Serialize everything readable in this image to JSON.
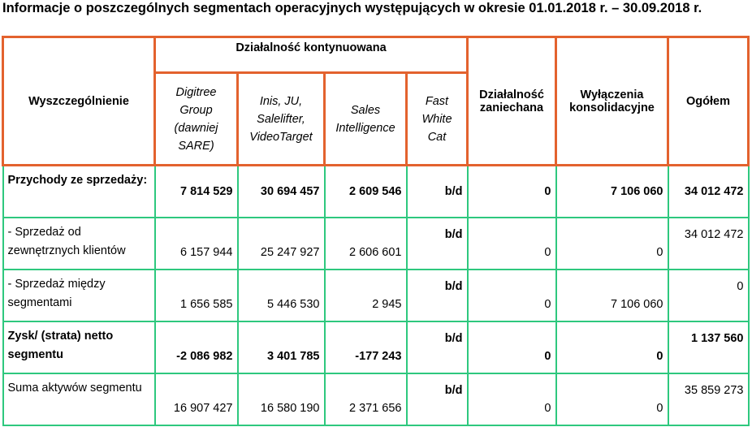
{
  "title": "Informacje o poszczególnych segmentach operacyjnych występujących w okresie 01.01.2018 r. – 30.09.2018 r.",
  "header": {
    "item_col": "Wyszczególnienie",
    "continued_group": "Działalność kontynuowana",
    "segments": [
      "Digitree Group (dawniej SARE)",
      "Inis, JU, Salelifter, VideoTarget",
      "Sales Intelligence",
      "Fast White Cat"
    ],
    "discontinued": "Działalność zaniechana",
    "eliminations": "Wyłączenia konsolidacyjne",
    "total": "Ogółem"
  },
  "rows": [
    {
      "label": "Przychody ze sprzedaży:",
      "bold": true,
      "values": [
        "7 814 529",
        "30 694 457",
        "2 609 546",
        "b/d",
        "0",
        "7 106 060",
        "34 012 472"
      ]
    },
    {
      "label": "- Sprzedaż od zewnętrznych klientów",
      "bold": false,
      "values": [
        "6 157 944",
        "25 247 927",
        "2 606 601",
        "b/d",
        "0",
        "0",
        "34 012 472"
      ]
    },
    {
      "label": "- Sprzedaż między segmentami",
      "bold": false,
      "values": [
        "1 656 585",
        "5 446 530",
        "2 945",
        "b/d",
        "0",
        "7 106 060",
        "0"
      ]
    },
    {
      "label": "Zysk/ (strata) netto segmentu",
      "bold": true,
      "values": [
        "-2 086 982",
        "3 401 785",
        "-177 243",
        "b/d",
        "0",
        "0",
        "1 137 560"
      ]
    },
    {
      "label": "Suma aktywów segmentu",
      "bold": false,
      "values": [
        "16 907 427",
        "16 580 190",
        "2 371 656",
        "b/d",
        "0",
        "0",
        "35 859 273"
      ]
    }
  ]
}
